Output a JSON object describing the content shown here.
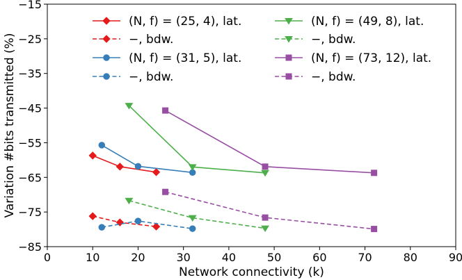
{
  "chart_data": {
    "type": "line",
    "xlabel": "Network connectivity (k)",
    "ylabel": "Variation #bits transmitted (%)",
    "xlim": [
      0,
      90
    ],
    "ylim": [
      -85,
      -15
    ],
    "xticks": [
      0,
      10,
      20,
      30,
      40,
      50,
      60,
      70,
      80,
      90
    ],
    "yticks": [
      -85,
      -75,
      -65,
      -55,
      -45,
      -35,
      -25,
      -15
    ],
    "ytick_labels": [
      "−85",
      "−75",
      "−65",
      "−55",
      "−45",
      "−35",
      "−25",
      "−15"
    ],
    "grid": false,
    "legend_position": "top",
    "series": [
      {
        "name": "(N, f) = (25, 4), lat.",
        "color": "#e41a1c",
        "marker": "diamond",
        "linestyle": "solid",
        "x": [
          10,
          16,
          24
        ],
        "y": [
          -58.7,
          -61.9,
          -63.5
        ]
      },
      {
        "name": "−, bdw.",
        "color": "#e41a1c",
        "marker": "diamond",
        "linestyle": "dashed",
        "x": [
          10,
          16,
          24
        ],
        "y": [
          -76.2,
          -78.0,
          -79.2
        ]
      },
      {
        "name": "(N, f) = (31, 5), lat.",
        "color": "#377eb8",
        "marker": "circle",
        "linestyle": "solid",
        "x": [
          12,
          20,
          32
        ],
        "y": [
          -55.7,
          -61.8,
          -63.6
        ]
      },
      {
        "name": "−, bdw.",
        "color": "#377eb8",
        "marker": "circle",
        "linestyle": "dashed",
        "x": [
          12,
          20,
          32
        ],
        "y": [
          -79.4,
          -77.6,
          -79.8
        ]
      },
      {
        "name": "(N, f) = (49, 8), lat.",
        "color": "#4daf4a",
        "marker": "triangle-down",
        "linestyle": "solid",
        "x": [
          18,
          32,
          48
        ],
        "y": [
          -44.3,
          -62.0,
          -63.7
        ]
      },
      {
        "name": "−, bdw.",
        "color": "#4daf4a",
        "marker": "triangle-down",
        "linestyle": "dashed",
        "x": [
          18,
          32,
          48
        ],
        "y": [
          -71.7,
          -76.7,
          -79.7
        ]
      },
      {
        "name": "(N, f) = (73, 12), lat.",
        "color": "#984ea3",
        "marker": "square",
        "linestyle": "solid",
        "x": [
          26,
          48,
          72
        ],
        "y": [
          -45.7,
          -61.9,
          -63.7
        ]
      },
      {
        "name": "−, bdw.",
        "color": "#984ea3",
        "marker": "square",
        "linestyle": "dashed",
        "x": [
          26,
          48,
          72
        ],
        "y": [
          -69.2,
          -76.6,
          -79.9
        ]
      }
    ]
  }
}
